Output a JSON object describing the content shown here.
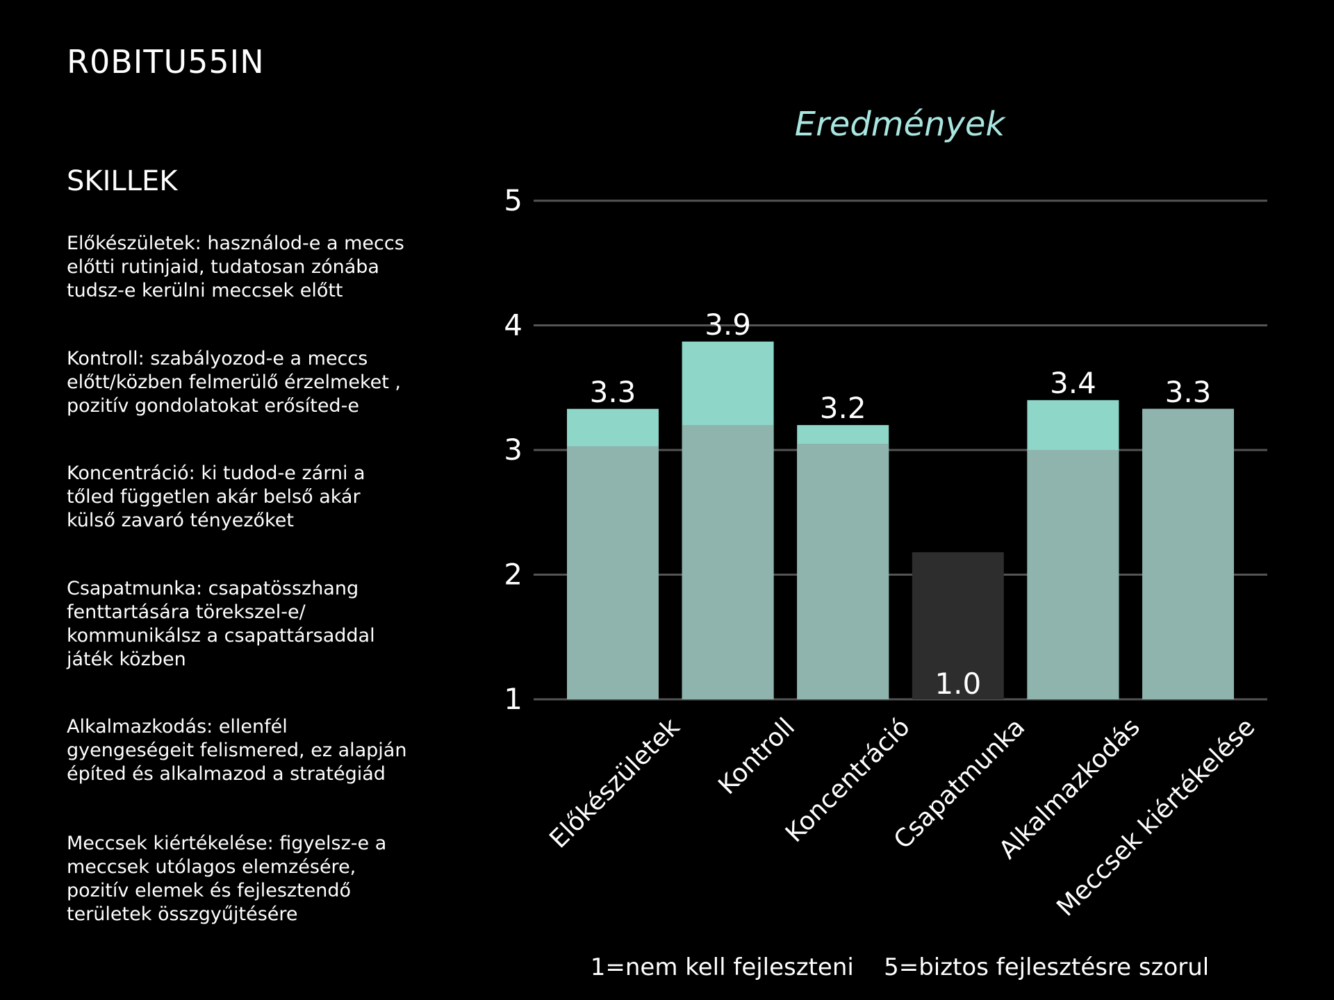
{
  "player": {
    "name": "R0BITU55IN"
  },
  "skills": {
    "heading": "SKILLEK",
    "items": [
      {
        "text": "Előkészületek: használod-e a  meccs\nelőtti rutinjaid, tudatosan zónába\ntudsz-e kerülni  meccsek előtt"
      },
      {
        "text": "Kontroll: szabályozod-e a meccs\nelőtt/közben felmerülő érzelmeket ,\npozitív gondolatokat erősíted-e"
      },
      {
        "text": "Koncentráció: ki tudod-e zárni a\ntőled független akár belső akár\nkülső zavaró tényezőket"
      },
      {
        "text": "Csapatmunka: csapatösszhang\nfenttartására törekszel-e/\nkommunikálsz a csapattársaddal\njáték közben"
      },
      {
        "text": "Alkalmazkodás: ellenfél\ngyengeségeit felismered, ez alapján\népíted és alkalmazod a stratégiád"
      },
      {
        "text": "Meccsek kiértékelése: figyelsz-e a\nmeccsek utólagos elemzésére,\npozitív elemek és fejlesztendő\nterületek összgyűjtésére"
      }
    ]
  },
  "chart_data": {
    "type": "bar",
    "title": "Eredmények",
    "categories": [
      "Előkészületek",
      "Kontroll",
      "Koncentráció",
      "Csapatmunka",
      "Alkalmazkodás",
      "Meccsek kiértékelése"
    ],
    "series": [
      {
        "values": [
          3.33,
          3.87,
          3.2,
          1.0,
          3.4,
          3.33
        ],
        "labels": [
          "3.3",
          "3.9",
          "3.2",
          "1.0",
          "3.4",
          "3.3"
        ],
        "color": "#8ed6c8"
      },
      {
        "values": [
          3.03,
          3.2,
          3.05,
          2.18,
          3.0,
          3.33
        ],
        "color": "#8fb3ad"
      }
    ],
    "ylim": [
      1,
      5
    ],
    "yticks": [
      1,
      2,
      3,
      4,
      5
    ],
    "grid": true,
    "colors": {
      "title": "#a9e6e0",
      "grid": "#555555",
      "overlay_low": "#2d2d2d",
      "text": "#ffffff"
    },
    "footnote": "1=nem kell fejleszteni    5=biztos fejlesztésre szorul"
  }
}
